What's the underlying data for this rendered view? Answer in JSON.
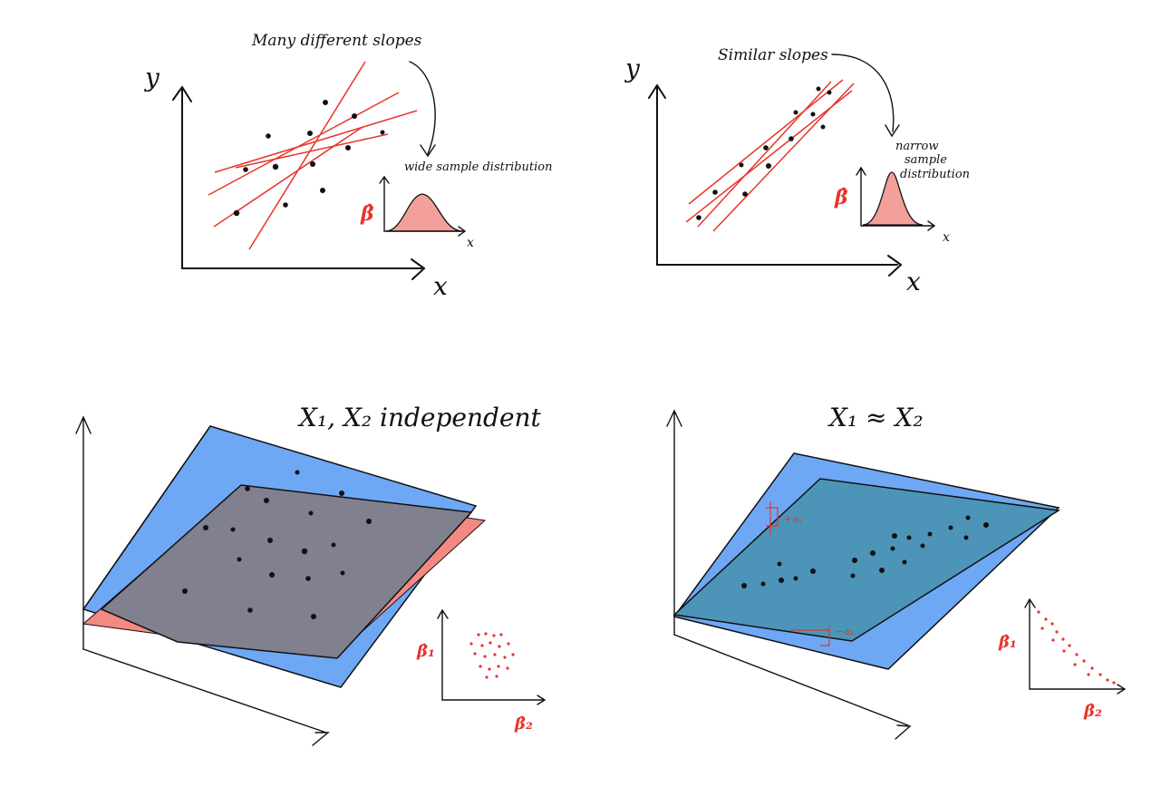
{
  "panels": {
    "top_left": {
      "title": "Many different slopes",
      "arrow_label": "wide sample distribution",
      "y_axis_label": "y",
      "x_axis_label": "x",
      "inset_y_label": "β̂",
      "inset_x_label": "x"
    },
    "top_right": {
      "title": "Similar slopes",
      "arrow_label_line1": "narrow",
      "arrow_label_line2": "sample",
      "arrow_label_line3": "distribution",
      "y_axis_label": "y",
      "x_axis_label": "x",
      "inset_y_label": "β̂",
      "inset_x_label": "x"
    },
    "bottom_left": {
      "title": "X₁, X₂ independent",
      "inset_y_label": "β̂₁",
      "inset_x_label": "β̂₂"
    },
    "bottom_right": {
      "title": "X₁ ≈ X₂",
      "plane_annot_top": "+a₁",
      "plane_annot_bottom": "−a₁",
      "inset_y_label": "β̂₁",
      "inset_x_label": "β̂₂"
    }
  },
  "colors": {
    "ink": "#111111",
    "fit_line": "#e8342a",
    "dist_fill": "#f4a09a",
    "plane_blue": "#6ea8f5",
    "plane_red": "#f28a82",
    "plane_overlap_gray": "#80808f",
    "plane_overlap_teal": "#4c95b8"
  }
}
